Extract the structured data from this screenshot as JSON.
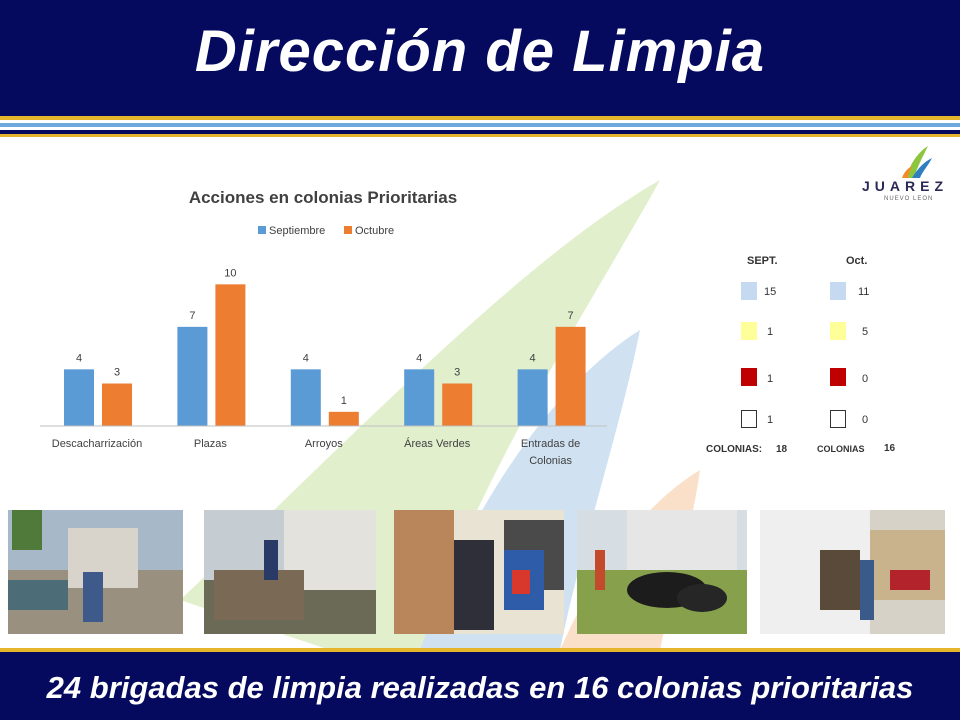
{
  "header": {
    "title": "Dirección de Limpia"
  },
  "footer": {
    "text": "24 brigadas de limpia realizadas en 16 colonias prioritarias"
  },
  "logo": {
    "word": "JUAREZ",
    "sub": "NUEVO LEON"
  },
  "colors": {
    "navy": "#050a5e",
    "september": "#5b9bd5",
    "october": "#ed7d31",
    "gold": "#e5b52c"
  },
  "chart_data": {
    "type": "bar",
    "title": "Acciones en colonias Prioritarias",
    "categories": [
      "Descacharrización",
      "Plazas",
      "Arroyos",
      "Áreas Verdes",
      "Entradas de Colonias"
    ],
    "series": [
      {
        "name": "Septiembre",
        "values": [
          4,
          7,
          4,
          4,
          4
        ],
        "color": "#5b9bd5"
      },
      {
        "name": "Octubre",
        "values": [
          3,
          10,
          1,
          3,
          7
        ],
        "color": "#ed7d31"
      }
    ],
    "ylim": [
      0,
      12
    ],
    "legend": "top",
    "grid": false
  },
  "summary": {
    "sept_label": "SEPT.",
    "oct_label": "Oct.",
    "rows": [
      {
        "color": "#c5d9f1",
        "sept": "15",
        "oct": "11"
      },
      {
        "color": "#ffff99",
        "sept": "1",
        "oct": "5"
      },
      {
        "color": "#c00000",
        "sept": "1",
        "oct": "0"
      },
      {
        "color": "#ffffff",
        "sept": "1",
        "oct": "0"
      }
    ],
    "colonias_sept_label": "COLONIAS:",
    "colonias_sept_value": "18",
    "colonias_oct_label": "COLONIAS",
    "colonias_oct_value": "16"
  }
}
